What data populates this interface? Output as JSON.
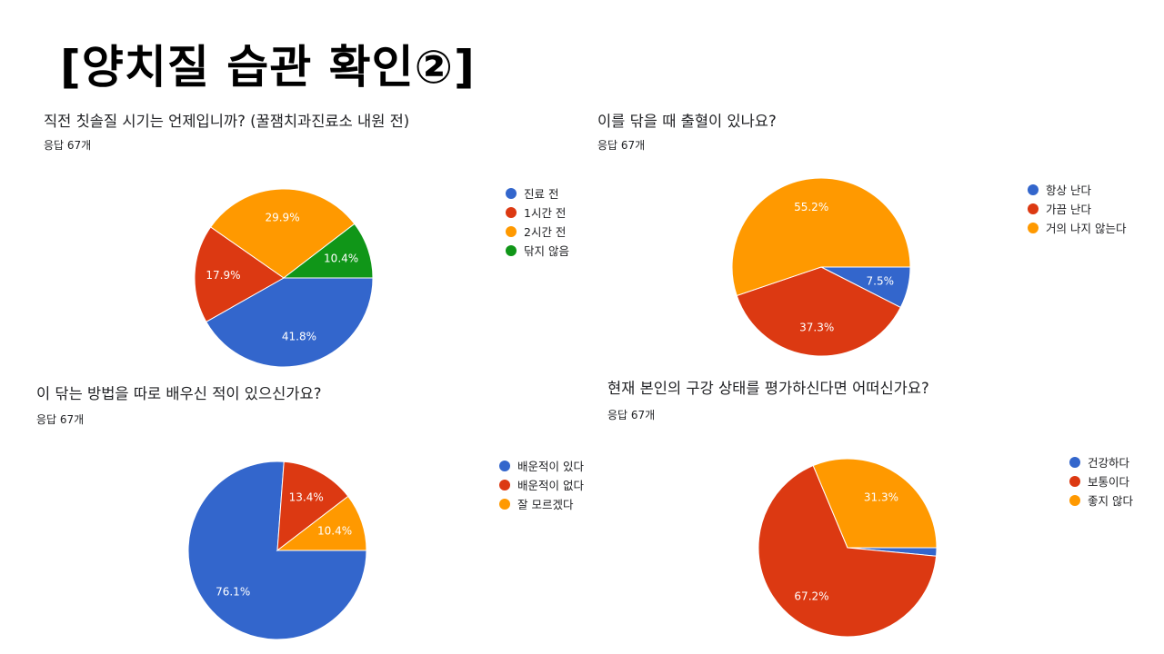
{
  "page_title": "[양치질 습관 확인②]",
  "colors": {
    "blue": "#3366cc",
    "red": "#dc3912",
    "orange": "#ff9900",
    "green": "#109618"
  },
  "chart_data": [
    {
      "type": "pie",
      "title": "직전 칫솔질 시기는 언제입니까? (꿀잼치과진료소 내원 전)",
      "subtitle": "응답 67개",
      "categories": [
        "진료 전",
        "1시간 전",
        "2시간 전",
        "닦지 않음"
      ],
      "values": [
        41.8,
        17.9,
        29.9,
        10.4
      ],
      "labels": [
        "41.8%",
        "17.9%",
        "29.9%",
        "10.4%"
      ],
      "colors": [
        "#3366cc",
        "#dc3912",
        "#ff9900",
        "#109618"
      ],
      "legend": "right"
    },
    {
      "type": "pie",
      "title": "이를 닦을 때 출혈이 있나요?",
      "subtitle": "응답 67개",
      "categories": [
        "항상 난다",
        "가끔 난다",
        "거의 나지 않는다"
      ],
      "values": [
        7.5,
        37.3,
        55.2
      ],
      "labels": [
        "7.5%",
        "37.3%",
        "55.2%"
      ],
      "colors": [
        "#3366cc",
        "#dc3912",
        "#ff9900"
      ],
      "legend": "right"
    },
    {
      "type": "pie",
      "title": "이 닦는 방법을 따로 배우신 적이 있으신가요?",
      "subtitle": "응답 67개",
      "categories": [
        "배운적이 있다",
        "배운적이 없다",
        "잘 모르겠다"
      ],
      "values": [
        76.1,
        13.4,
        10.4
      ],
      "labels": [
        "76.1%",
        "13.4%",
        "10.4%"
      ],
      "colors": [
        "#3366cc",
        "#dc3912",
        "#ff9900"
      ],
      "legend": "right"
    },
    {
      "type": "pie",
      "title": "현재 본인의 구강 상태를 평가하신다면 어떠신가요?",
      "subtitle": "응답 67개",
      "categories": [
        "건강하다",
        "보통이다",
        "좋지 않다"
      ],
      "values": [
        1.5,
        67.2,
        31.3
      ],
      "labels": [
        "",
        "67.2%",
        "31.3%"
      ],
      "colors": [
        "#3366cc",
        "#dc3912",
        "#ff9900"
      ],
      "legend": "right"
    }
  ]
}
